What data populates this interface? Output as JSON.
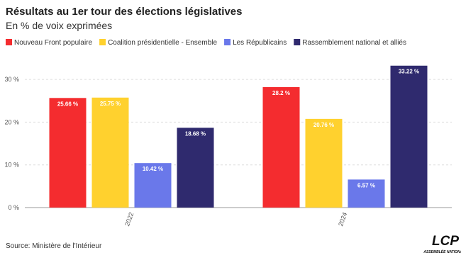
{
  "chart_data": {
    "type": "bar",
    "title": "Résultats au 1er tour des élections législatives",
    "subtitle": "En % de voix exprimées",
    "source": "Source: Ministère de l'Intérieur",
    "categories": [
      "2022",
      "2024"
    ],
    "series": [
      {
        "name": "Nouveau Front populaire",
        "color": "#f42c2f",
        "values": [
          25.66,
          28.2
        ],
        "value_labels": [
          "25.66 %",
          "28.2 %"
        ]
      },
      {
        "name": "Coalition présidentielle - Ensemble",
        "color": "#ffd12e",
        "values": [
          25.75,
          20.76
        ],
        "value_labels": [
          "25.75 %",
          "20.76 %"
        ]
      },
      {
        "name": "Les Républicains",
        "color": "#6a78ea",
        "values": [
          10.42,
          6.57
        ],
        "value_labels": [
          "10.42 %",
          "6.57 %"
        ]
      },
      {
        "name": "Rassemblement national et alliés",
        "color": "#2f2a6e",
        "values": [
          18.68,
          33.22
        ],
        "value_labels": [
          "18.68 %",
          "33.22 %"
        ]
      }
    ],
    "ylim": [
      0,
      35
    ],
    "yticks": [
      {
        "value": 0,
        "label": "0 %"
      },
      {
        "value": 10,
        "label": "10 %"
      },
      {
        "value": 20,
        "label": "20 %"
      },
      {
        "value": 30,
        "label": "30 %"
      }
    ],
    "grid": true
  },
  "logo": {
    "text": "LCP",
    "subtitle": "ASSEMBLÉE NATIONALE"
  }
}
